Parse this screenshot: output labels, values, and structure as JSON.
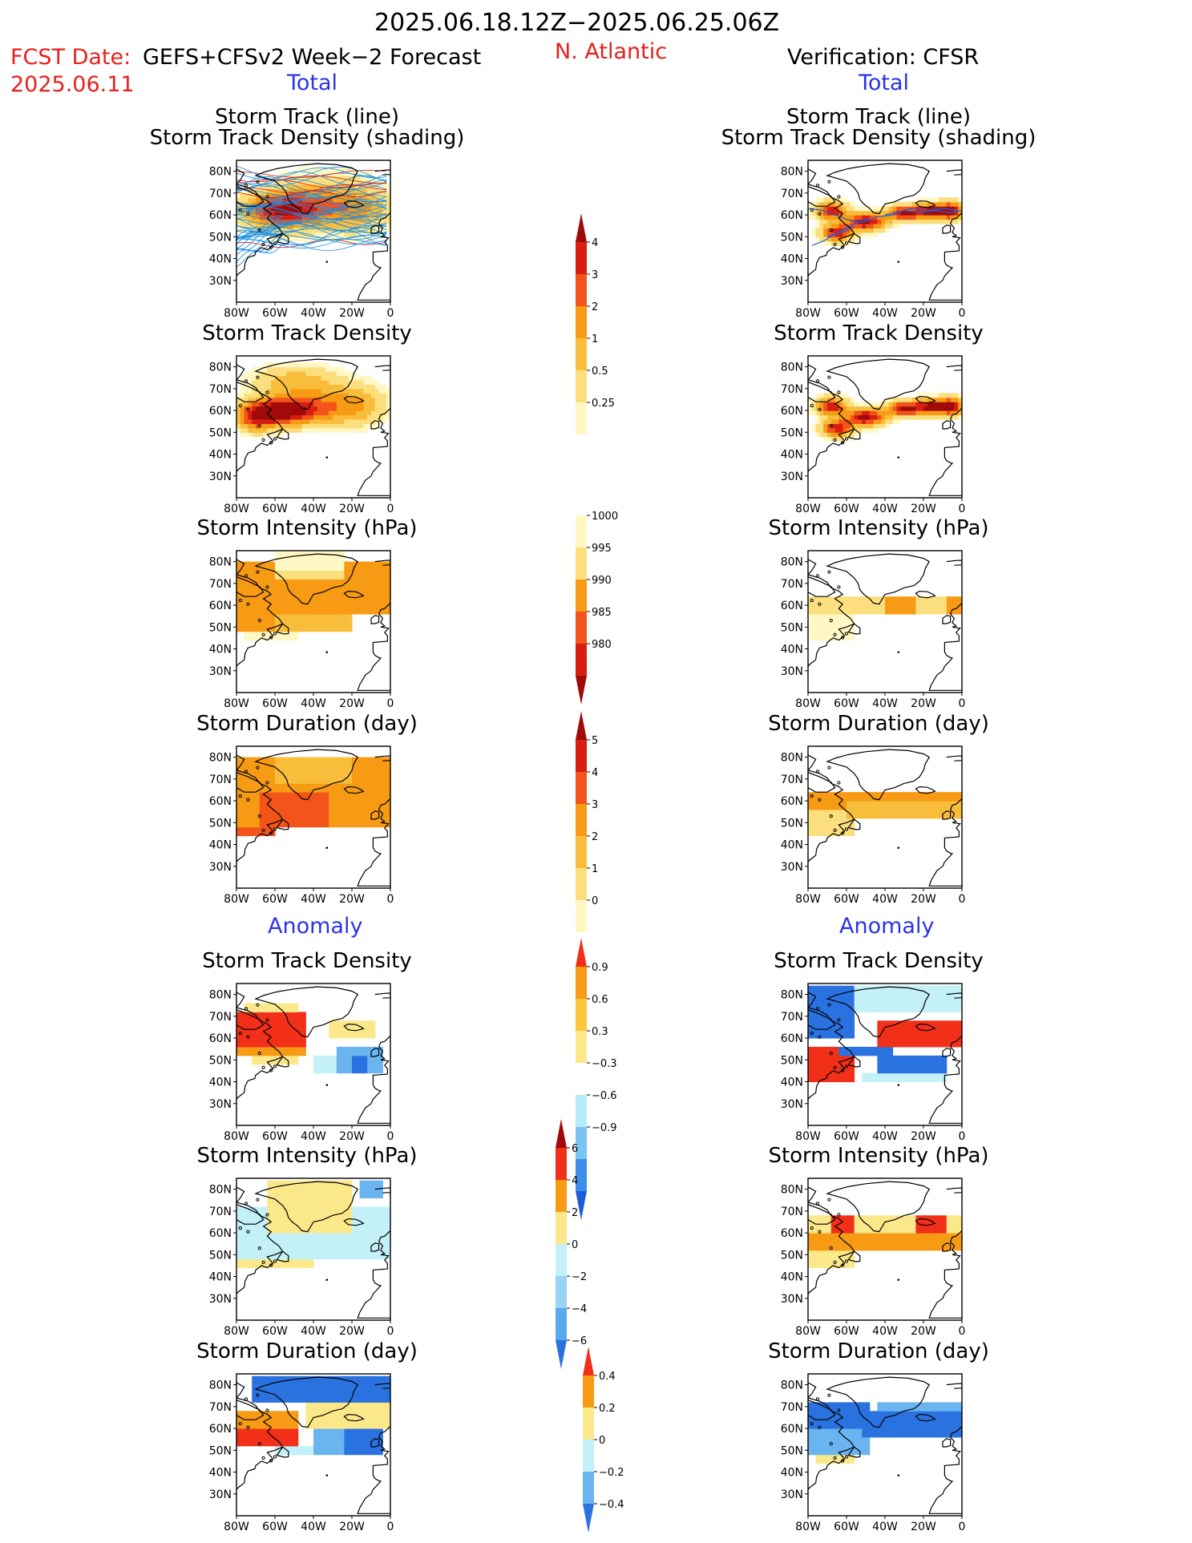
{
  "header": {
    "period": "2025.06.18.12Z−2025.06.25.06Z",
    "fcst_label": "FCST Date:",
    "fcst_source": "GEFS+CFSv2 Week−2 Forecast",
    "fcst_date": "2025.06.11",
    "region": "N. Atlantic",
    "verification": "Verification: CFSR",
    "left_total": "Total",
    "right_total": "Total",
    "left_anomaly": "Anomaly",
    "right_anomaly": "Anomaly"
  },
  "colors": {
    "title_red": "#e8201c",
    "title_blue": "#2a34e8",
    "land_outline": "#000000",
    "track_blue": "#1a8fe8",
    "track_red": "#d81818"
  },
  "axis": {
    "x_ticks": [
      "80W",
      "60W",
      "40W",
      "20W",
      "0"
    ],
    "y_ticks": [
      "80N",
      "70N",
      "60N",
      "50N",
      "40N",
      "30N"
    ],
    "xlim": [
      -80,
      0
    ],
    "ylim": [
      20,
      85
    ]
  },
  "chart_data": [
    {
      "id": "fc_track_total",
      "type": "heatmap",
      "title": "Storm Track (line)",
      "subtitle": "Storm Track Density (shading)",
      "field": "fc_track"
    },
    {
      "id": "vf_track_total",
      "type": "heatmap",
      "title": "Storm Track (line)",
      "subtitle": "Storm Track Density (shading)",
      "field": "vf_track"
    },
    {
      "id": "fc_density_total",
      "type": "heatmap",
      "title": "Storm Track Density",
      "field": "fc_density"
    },
    {
      "id": "vf_density_total",
      "type": "heatmap",
      "title": "Storm Track Density",
      "field": "vf_density"
    },
    {
      "id": "fc_intensity_total",
      "type": "heatmap",
      "title": "Storm Intensity (hPa)",
      "field": "fc_intensity"
    },
    {
      "id": "vf_intensity_total",
      "type": "heatmap",
      "title": "Storm Intensity (hPa)",
      "field": "vf_intensity"
    },
    {
      "id": "fc_duration_total",
      "type": "heatmap",
      "title": "Storm Duration (day)",
      "field": "fc_duration"
    },
    {
      "id": "vf_duration_total",
      "type": "heatmap",
      "title": "Storm Duration (day)",
      "field": "vf_duration"
    },
    {
      "id": "fc_density_anom",
      "type": "heatmap",
      "title": "Storm Track Density",
      "field": "fc_density_anom"
    },
    {
      "id": "vf_density_anom",
      "type": "heatmap",
      "title": "Storm Track Density",
      "field": "vf_density_anom"
    },
    {
      "id": "fc_intensity_anom",
      "type": "heatmap",
      "title": "Storm Intensity (hPa)",
      "field": "fc_intensity_anom"
    },
    {
      "id": "vf_intensity_anom",
      "type": "heatmap",
      "title": "Storm Intensity (hPa)",
      "field": "vf_intensity_anom"
    },
    {
      "id": "fc_duration_anom",
      "type": "heatmap",
      "title": "Storm Duration (day)",
      "field": "fc_duration_anom"
    },
    {
      "id": "vf_duration_anom",
      "type": "heatmap",
      "title": "Storm Duration (day)",
      "field": "vf_duration_anom"
    }
  ],
  "colorbars": [
    {
      "id": "density",
      "labels": [
        "4",
        "3",
        "2",
        "1",
        "0.5",
        "0.25"
      ],
      "colors": [
        "#a00a0a",
        "#d81e10",
        "#f2541a",
        "#f79a14",
        "#f9bd3c",
        "#fbdf7e",
        "#fff8c4"
      ]
    },
    {
      "id": "intensity",
      "labels": [
        "1000",
        "995",
        "990",
        "985",
        "980"
      ],
      "colors": [
        "#fff8c4",
        "#fbdf7e",
        "#f79a14",
        "#f2541a",
        "#d81e10",
        "#a00a0a"
      ]
    },
    {
      "id": "duration",
      "labels": [
        "5",
        "4",
        "3",
        "2",
        "1",
        "0"
      ],
      "colors": [
        "#a00a0a",
        "#d81e10",
        "#f2541a",
        "#f79a14",
        "#f9bd3c",
        "#fbdf7e",
        "#fff8c4"
      ]
    },
    {
      "id": "density_anom",
      "labels": [
        "0.9",
        "0.6",
        "0.3",
        "−0.3",
        "−0.6",
        "−0.9"
      ],
      "colors": [
        "#f2301a",
        "#f79a14",
        "#fbc53c",
        "#fbe88a",
        "#ffffff",
        "#b4ecf8",
        "#7ac4f2",
        "#3c8ee8",
        "#1c5cd8"
      ]
    },
    {
      "id": "intensity_anom",
      "labels": [
        "6",
        "4",
        "2",
        "0",
        "−2",
        "−4",
        "−6"
      ],
      "colors": [
        "#a00a0a",
        "#f2301a",
        "#f79a14",
        "#fbe88a",
        "#c4f0f8",
        "#9ad4f4",
        "#5aa8ee",
        "#2a72e0"
      ]
    },
    {
      "id": "duration_anom",
      "labels": [
        "0.4",
        "0.2",
        "0",
        "−0.2",
        "−0.4"
      ],
      "colors": [
        "#f2301a",
        "#f79a14",
        "#fbe88a",
        "#c4f0f8",
        "#6ab4f0",
        "#2a72e0"
      ]
    }
  ]
}
